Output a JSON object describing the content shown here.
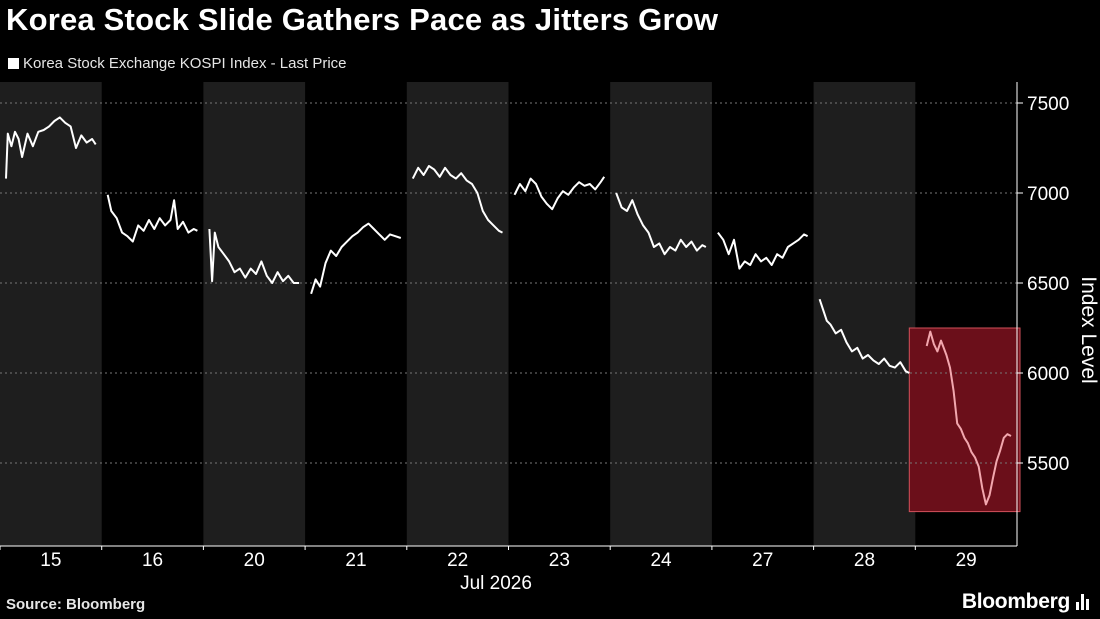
{
  "title": "Korea Stock Slide Gathers Pace as Jitters Grow",
  "legend_label": "Korea Stock Exchange KOSPI Index - Last Price",
  "source": "Source: Bloomberg",
  "brand": "Bloomberg",
  "brand_icon": "bar-chart-icon",
  "colors": {
    "background": "#000000",
    "shaded_band": "#1e1e1e",
    "line": "#ffffff",
    "highlight_fill": "#6b0f1a",
    "highlight_border": "#d0505a",
    "highlight_line": "#f2a7ae"
  },
  "chart_data": {
    "type": "line",
    "series": [
      {
        "name": "Korea Stock Exchange KOSPI Index - Last Price"
      }
    ],
    "ylabel": "Index Level",
    "ylim": [
      5000,
      7500
    ],
    "yticks": [
      5500,
      6000,
      6500,
      7000,
      7500
    ],
    "xlabel": "Jul 2026",
    "days": [
      "15",
      "16",
      "20",
      "21",
      "22",
      "23",
      "24",
      "27",
      "28",
      "29"
    ],
    "shaded_days": [
      "15",
      "20",
      "22",
      "24",
      "28"
    ],
    "highlighted_day": "29",
    "grid": true,
    "day_paths": [
      [
        [
          0,
          7080
        ],
        [
          0.02,
          7330
        ],
        [
          0.06,
          7260
        ],
        [
          0.1,
          7340
        ],
        [
          0.14,
          7300
        ],
        [
          0.18,
          7200
        ],
        [
          0.24,
          7330
        ],
        [
          0.3,
          7260
        ],
        [
          0.36,
          7340
        ],
        [
          0.42,
          7350
        ],
        [
          0.48,
          7370
        ],
        [
          0.54,
          7400
        ],
        [
          0.6,
          7420
        ],
        [
          0.66,
          7390
        ],
        [
          0.72,
          7370
        ],
        [
          0.78,
          7250
        ],
        [
          0.84,
          7320
        ],
        [
          0.9,
          7280
        ],
        [
          0.96,
          7300
        ],
        [
          1,
          7270
        ]
      ],
      [
        [
          0,
          6990
        ],
        [
          0.04,
          6900
        ],
        [
          0.1,
          6860
        ],
        [
          0.16,
          6780
        ],
        [
          0.22,
          6760
        ],
        [
          0.28,
          6730
        ],
        [
          0.34,
          6820
        ],
        [
          0.4,
          6790
        ],
        [
          0.46,
          6850
        ],
        [
          0.52,
          6800
        ],
        [
          0.58,
          6860
        ],
        [
          0.64,
          6820
        ],
        [
          0.7,
          6850
        ],
        [
          0.74,
          6960
        ],
        [
          0.78,
          6800
        ],
        [
          0.84,
          6840
        ],
        [
          0.9,
          6780
        ],
        [
          0.96,
          6800
        ],
        [
          1,
          6790
        ]
      ],
      [
        [
          0,
          6800
        ],
        [
          0.03,
          6510
        ],
        [
          0.06,
          6780
        ],
        [
          0.1,
          6700
        ],
        [
          0.16,
          6660
        ],
        [
          0.22,
          6620
        ],
        [
          0.28,
          6560
        ],
        [
          0.34,
          6580
        ],
        [
          0.4,
          6530
        ],
        [
          0.46,
          6580
        ],
        [
          0.52,
          6550
        ],
        [
          0.58,
          6620
        ],
        [
          0.64,
          6540
        ],
        [
          0.7,
          6500
        ],
        [
          0.76,
          6560
        ],
        [
          0.82,
          6510
        ],
        [
          0.88,
          6540
        ],
        [
          0.94,
          6500
        ],
        [
          1,
          6500
        ]
      ],
      [
        [
          0,
          6440
        ],
        [
          0.05,
          6520
        ],
        [
          0.1,
          6480
        ],
        [
          0.16,
          6610
        ],
        [
          0.22,
          6680
        ],
        [
          0.28,
          6650
        ],
        [
          0.34,
          6700
        ],
        [
          0.4,
          6730
        ],
        [
          0.46,
          6760
        ],
        [
          0.52,
          6780
        ],
        [
          0.58,
          6810
        ],
        [
          0.64,
          6830
        ],
        [
          0.7,
          6800
        ],
        [
          0.76,
          6770
        ],
        [
          0.82,
          6740
        ],
        [
          0.88,
          6770
        ],
        [
          0.94,
          6760
        ],
        [
          1,
          6750
        ]
      ],
      [
        [
          0,
          7080
        ],
        [
          0.06,
          7140
        ],
        [
          0.12,
          7100
        ],
        [
          0.18,
          7150
        ],
        [
          0.24,
          7130
        ],
        [
          0.3,
          7090
        ],
        [
          0.36,
          7140
        ],
        [
          0.42,
          7100
        ],
        [
          0.48,
          7080
        ],
        [
          0.54,
          7110
        ],
        [
          0.6,
          7070
        ],
        [
          0.66,
          7050
        ],
        [
          0.72,
          7000
        ],
        [
          0.78,
          6900
        ],
        [
          0.84,
          6850
        ],
        [
          0.9,
          6820
        ],
        [
          0.96,
          6790
        ],
        [
          1,
          6780
        ]
      ],
      [
        [
          0,
          6990
        ],
        [
          0.06,
          7050
        ],
        [
          0.12,
          7010
        ],
        [
          0.18,
          7080
        ],
        [
          0.24,
          7050
        ],
        [
          0.3,
          6980
        ],
        [
          0.36,
          6940
        ],
        [
          0.42,
          6910
        ],
        [
          0.48,
          6970
        ],
        [
          0.54,
          7010
        ],
        [
          0.6,
          6990
        ],
        [
          0.66,
          7030
        ],
        [
          0.72,
          7060
        ],
        [
          0.78,
          7040
        ],
        [
          0.84,
          7050
        ],
        [
          0.9,
          7020
        ],
        [
          0.96,
          7060
        ],
        [
          1,
          7090
        ]
      ],
      [
        [
          0,
          7000
        ],
        [
          0.06,
          6920
        ],
        [
          0.12,
          6900
        ],
        [
          0.18,
          6960
        ],
        [
          0.24,
          6880
        ],
        [
          0.3,
          6820
        ],
        [
          0.36,
          6780
        ],
        [
          0.42,
          6700
        ],
        [
          0.48,
          6720
        ],
        [
          0.54,
          6660
        ],
        [
          0.6,
          6700
        ],
        [
          0.66,
          6680
        ],
        [
          0.72,
          6740
        ],
        [
          0.78,
          6700
        ],
        [
          0.84,
          6730
        ],
        [
          0.9,
          6680
        ],
        [
          0.96,
          6710
        ],
        [
          1,
          6700
        ]
      ],
      [
        [
          0,
          6780
        ],
        [
          0.06,
          6740
        ],
        [
          0.12,
          6660
        ],
        [
          0.18,
          6740
        ],
        [
          0.24,
          6580
        ],
        [
          0.3,
          6620
        ],
        [
          0.36,
          6600
        ],
        [
          0.42,
          6660
        ],
        [
          0.48,
          6620
        ],
        [
          0.54,
          6640
        ],
        [
          0.6,
          6600
        ],
        [
          0.66,
          6660
        ],
        [
          0.72,
          6640
        ],
        [
          0.78,
          6700
        ],
        [
          0.84,
          6720
        ],
        [
          0.9,
          6740
        ],
        [
          0.96,
          6770
        ],
        [
          1,
          6760
        ]
      ],
      [
        [
          0,
          6410
        ],
        [
          0.04,
          6350
        ],
        [
          0.08,
          6290
        ],
        [
          0.12,
          6270
        ],
        [
          0.18,
          6220
        ],
        [
          0.24,
          6240
        ],
        [
          0.3,
          6170
        ],
        [
          0.36,
          6120
        ],
        [
          0.42,
          6140
        ],
        [
          0.48,
          6080
        ],
        [
          0.54,
          6100
        ],
        [
          0.6,
          6070
        ],
        [
          0.66,
          6050
        ],
        [
          0.72,
          6080
        ],
        [
          0.78,
          6040
        ],
        [
          0.84,
          6030
        ],
        [
          0.9,
          6060
        ],
        [
          0.96,
          6010
        ],
        [
          1,
          6000
        ]
      ],
      [
        [
          0.06,
          6150
        ],
        [
          0.1,
          6230
        ],
        [
          0.14,
          6160
        ],
        [
          0.18,
          6120
        ],
        [
          0.22,
          6180
        ],
        [
          0.28,
          6100
        ],
        [
          0.32,
          6030
        ],
        [
          0.36,
          5900
        ],
        [
          0.4,
          5720
        ],
        [
          0.44,
          5690
        ],
        [
          0.48,
          5640
        ],
        [
          0.52,
          5610
        ],
        [
          0.56,
          5560
        ],
        [
          0.6,
          5530
        ],
        [
          0.64,
          5480
        ],
        [
          0.68,
          5360
        ],
        [
          0.72,
          5270
        ],
        [
          0.76,
          5320
        ],
        [
          0.8,
          5420
        ],
        [
          0.84,
          5510
        ],
        [
          0.88,
          5570
        ],
        [
          0.92,
          5640
        ],
        [
          0.96,
          5660
        ],
        [
          1,
          5650
        ]
      ]
    ]
  }
}
